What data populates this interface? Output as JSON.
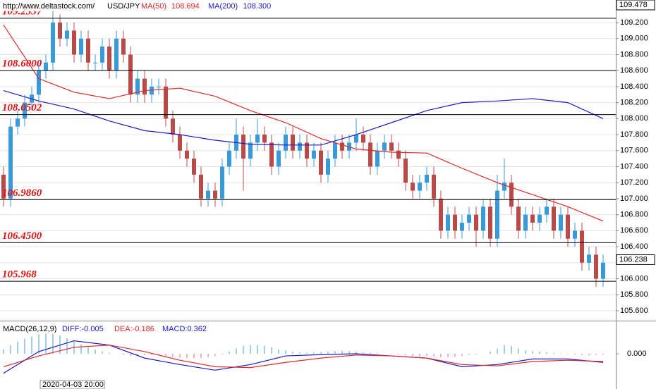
{
  "chart_data": [
    {
      "type": "candlestick",
      "site": "http://www.deltastock.com/",
      "symbol": "USD/JPY",
      "up_color": "#3a9ad9",
      "down_color": "#b84a4a",
      "ylim": [
        105.476,
        109.482
      ],
      "yticks": [
        {
          "value": 109.2,
          "label": "109.200"
        },
        {
          "value": 109.0,
          "label": "109.000"
        },
        {
          "value": 108.8,
          "label": "108.800"
        },
        {
          "value": 108.6,
          "label": "108.600"
        },
        {
          "value": 108.4,
          "label": "108.400"
        },
        {
          "value": 108.2,
          "label": "108.200"
        },
        {
          "value": 108.0,
          "label": "108.000"
        },
        {
          "value": 107.8,
          "label": "107.800"
        },
        {
          "value": 107.6,
          "label": "107.600"
        },
        {
          "value": 107.4,
          "label": "107.400"
        },
        {
          "value": 107.2,
          "label": "107.200"
        },
        {
          "value": 107.0,
          "label": "107.000"
        },
        {
          "value": 106.8,
          "label": "106.800"
        },
        {
          "value": 106.6,
          "label": "106.600"
        },
        {
          "value": 106.4,
          "label": "106.400"
        },
        {
          "value": 106.2,
          "label": "106.200"
        },
        {
          "value": 106.0,
          "label": "106.000"
        },
        {
          "value": 105.8,
          "label": "105.800"
        },
        {
          "value": 105.6,
          "label": "105.600"
        }
      ],
      "grid": true,
      "levels": [
        109.2537,
        {
          "value": 108.6,
          "label": "108.6000"
        },
        108.0502,
        {
          "value": 106.986,
          "label": "106.9860"
        },
        {
          "value": 106.45,
          "label": "106.4500"
        },
        105.968
      ],
      "price_labels": [
        109.478,
        106.238
      ],
      "date_label": "2020-04-03 20:00",
      "ohlc": [
        [
          107.3,
          107.4,
          106.9,
          107.0
        ],
        [
          107.0,
          108.0,
          106.9,
          107.9
        ],
        [
          107.9,
          108.1,
          107.8,
          108.0
        ],
        [
          108.0,
          108.3,
          107.9,
          108.2
        ],
        [
          108.2,
          108.4,
          108.1,
          108.3
        ],
        [
          108.3,
          108.7,
          108.2,
          108.6
        ],
        [
          108.6,
          108.8,
          108.5,
          108.7
        ],
        [
          108.7,
          109.4,
          108.6,
          109.2
        ],
        [
          109.2,
          109.3,
          108.9,
          109.0
        ],
        [
          109.0,
          109.2,
          108.9,
          109.1
        ],
        [
          109.1,
          109.2,
          108.7,
          108.8
        ],
        [
          108.8,
          109.1,
          108.7,
          109.0
        ],
        [
          109.0,
          109.1,
          108.6,
          108.7
        ],
        [
          108.7,
          108.8,
          108.6,
          108.7
        ],
        [
          108.7,
          109.0,
          108.6,
          108.9
        ],
        [
          108.9,
          109.0,
          108.5,
          108.6
        ],
        [
          108.6,
          109.1,
          108.5,
          109.0
        ],
        [
          109.0,
          109.1,
          108.7,
          108.8
        ],
        [
          108.8,
          108.9,
          108.2,
          108.3
        ],
        [
          108.3,
          108.6,
          108.2,
          108.5
        ],
        [
          108.5,
          108.6,
          108.2,
          108.3
        ],
        [
          108.3,
          108.5,
          108.2,
          108.4
        ],
        [
          108.4,
          108.5,
          108.3,
          108.4
        ],
        [
          108.4,
          108.5,
          107.9,
          108.0
        ],
        [
          108.0,
          108.1,
          107.7,
          107.8
        ],
        [
          107.8,
          107.9,
          107.5,
          107.6
        ],
        [
          107.6,
          107.7,
          107.4,
          107.5
        ],
        [
          107.5,
          107.6,
          107.2,
          107.3
        ],
        [
          107.3,
          107.4,
          106.9,
          107.0
        ],
        [
          107.0,
          107.2,
          106.9,
          107.1
        ],
        [
          107.1,
          107.2,
          106.9,
          107.0
        ],
        [
          107.0,
          107.5,
          106.9,
          107.4
        ],
        [
          107.4,
          107.7,
          107.3,
          107.6
        ],
        [
          107.6,
          108.0,
          107.5,
          107.8
        ],
        [
          107.8,
          107.9,
          107.1,
          107.5
        ],
        [
          107.5,
          107.8,
          107.4,
          107.7
        ],
        [
          107.7,
          108.0,
          107.6,
          107.8
        ],
        [
          107.8,
          107.9,
          107.6,
          107.7
        ],
        [
          107.7,
          107.8,
          107.3,
          107.4
        ],
        [
          107.4,
          107.7,
          107.3,
          107.6
        ],
        [
          107.6,
          107.9,
          107.5,
          107.8
        ],
        [
          107.8,
          107.9,
          107.5,
          107.6
        ],
        [
          107.6,
          107.8,
          107.5,
          107.7
        ],
        [
          107.7,
          107.8,
          107.4,
          107.5
        ],
        [
          107.5,
          107.7,
          107.4,
          107.6
        ],
        [
          107.6,
          107.7,
          107.2,
          107.3
        ],
        [
          107.3,
          107.6,
          107.2,
          107.5
        ],
        [
          107.5,
          107.8,
          107.4,
          107.7
        ],
        [
          107.7,
          107.8,
          107.5,
          107.6
        ],
        [
          107.6,
          107.8,
          107.5,
          107.7
        ],
        [
          107.7,
          108.0,
          107.6,
          107.8
        ],
        [
          107.8,
          107.9,
          107.6,
          107.7
        ],
        [
          107.7,
          107.8,
          107.3,
          107.4
        ],
        [
          107.4,
          107.7,
          107.3,
          107.6
        ],
        [
          107.6,
          107.8,
          107.5,
          107.7
        ],
        [
          107.7,
          107.8,
          107.5,
          107.6
        ],
        [
          107.6,
          107.7,
          107.4,
          107.5
        ],
        [
          107.5,
          107.6,
          107.1,
          107.2
        ],
        [
          107.2,
          107.3,
          107.0,
          107.1
        ],
        [
          107.1,
          107.3,
          107.0,
          107.2
        ],
        [
          107.2,
          107.4,
          107.1,
          107.3
        ],
        [
          107.3,
          107.4,
          106.9,
          107.0
        ],
        [
          107.0,
          107.1,
          106.5,
          106.6
        ],
        [
          106.6,
          106.9,
          106.5,
          106.8
        ],
        [
          106.8,
          106.9,
          106.5,
          106.6
        ],
        [
          106.6,
          106.8,
          106.5,
          106.7
        ],
        [
          106.7,
          106.9,
          106.6,
          106.8
        ],
        [
          106.8,
          106.9,
          106.4,
          106.6
        ],
        [
          106.6,
          107.0,
          106.5,
          106.9
        ],
        [
          106.9,
          107.0,
          106.4,
          106.5
        ],
        [
          106.5,
          107.3,
          106.4,
          107.1
        ],
        [
          107.1,
          107.5,
          107.0,
          107.2
        ],
        [
          107.2,
          107.3,
          106.8,
          106.9
        ],
        [
          106.9,
          107.0,
          106.5,
          106.6
        ],
        [
          106.6,
          106.9,
          106.5,
          106.8
        ],
        [
          106.8,
          106.9,
          106.6,
          106.7
        ],
        [
          106.7,
          106.9,
          106.6,
          106.8
        ],
        [
          106.8,
          107.0,
          106.7,
          106.9
        ],
        [
          106.9,
          107.0,
          106.5,
          106.6
        ],
        [
          106.6,
          106.9,
          106.5,
          106.8
        ],
        [
          106.8,
          106.9,
          106.4,
          106.5
        ],
        [
          106.5,
          106.7,
          106.4,
          106.6
        ],
        [
          106.6,
          106.7,
          106.1,
          106.2
        ],
        [
          106.2,
          106.4,
          106.1,
          106.3
        ],
        [
          106.3,
          106.4,
          105.9,
          106.0
        ],
        [
          106.0,
          106.3,
          105.9,
          106.2
        ]
      ],
      "series": [
        {
          "name": "MA(50)",
          "color": "#e02828",
          "current": 108.694,
          "x": [
            0,
            5,
            10,
            15,
            20,
            25,
            30,
            35,
            40,
            45,
            50,
            55,
            60,
            65,
            70,
            75,
            80,
            85
          ],
          "values": [
            109.17,
            108.5,
            108.33,
            108.25,
            108.35,
            108.38,
            108.28,
            108.1,
            107.95,
            107.75,
            107.62,
            107.58,
            107.57,
            107.38,
            107.2,
            107.05,
            106.9,
            106.72
          ]
        },
        {
          "name": "MA(200)",
          "color": "#1a1ac8",
          "current": 108.3,
          "current_label": "108.300",
          "x": [
            0,
            5,
            10,
            15,
            20,
            25,
            30,
            35,
            40,
            45,
            50,
            55,
            60,
            65,
            70,
            75,
            80,
            85
          ],
          "values": [
            108.35,
            108.22,
            108.12,
            107.97,
            107.85,
            107.8,
            107.73,
            107.68,
            107.67,
            107.67,
            107.8,
            107.95,
            108.1,
            108.2,
            108.22,
            108.25,
            108.2,
            108.0
          ]
        }
      ]
    },
    {
      "type": "macd",
      "title": "MACD(26,12,9)",
      "labels": [
        {
          "text": "DIFF:-0.005",
          "color": "#1a1ac8"
        },
        {
          "text": "DEA:-0.186",
          "color": "#e02828"
        },
        {
          "text": "MACD:0.362",
          "color": "#1a1ac8"
        }
      ],
      "ylim": [
        -0.75,
        0.717
      ],
      "yticks": [
        {
          "value": 0,
          "label": "0.000"
        }
      ],
      "histogram": {
        "pos_color": "#7fbfe6",
        "neg_color": "#e79a9a",
        "values": [
          0.1,
          0.2,
          0.28,
          0.35,
          0.4,
          0.45,
          0.47,
          0.46,
          0.42,
          0.36,
          0.3,
          0.22,
          0.15,
          0.1,
          0.06,
          0.02,
          0,
          -0.03,
          -0.05,
          -0.04,
          -0.03,
          -0.03,
          -0.04,
          -0.06,
          -0.08,
          -0.09,
          -0.1,
          -0.1,
          -0.1,
          -0.08,
          -0.06,
          -0.02,
          0.05,
          0.12,
          0.18,
          0.2,
          0.2,
          0.18,
          0.15,
          0.1,
          0.08,
          0.05,
          0.03,
          0.02,
          0.03,
          0.04,
          0.05,
          0.06,
          0.07,
          0.06,
          0.05,
          0.03,
          0.02,
          0.01,
          0,
          -0.01,
          -0.02,
          -0.03,
          -0.05,
          -0.06,
          -0.05,
          -0.06,
          -0.08,
          -0.08,
          -0.07,
          -0.05,
          -0.03,
          -0.02,
          0,
          0.05,
          0.12,
          0.2,
          0.18,
          0.12,
          0.08,
          0.06,
          0.05,
          0.04,
          0.02,
          0.01,
          -0.01,
          -0.02,
          -0.03,
          -0.04,
          -0.03,
          -0.02
        ]
      },
      "series": [
        {
          "name": "DIFF",
          "color": "#1a1ac8",
          "x": [
            0,
            5,
            10,
            15,
            20,
            25,
            30,
            35,
            40,
            45,
            50,
            55,
            60,
            65,
            70,
            75,
            80,
            85
          ],
          "values": [
            -0.45,
            0.05,
            0.3,
            0.2,
            -0.1,
            -0.25,
            -0.38,
            -0.25,
            -0.05,
            -0.02,
            0.0,
            -0.05,
            -0.1,
            -0.3,
            -0.25,
            -0.12,
            -0.12,
            -0.2
          ]
        },
        {
          "name": "DEA",
          "color": "#e02828",
          "x": [
            0,
            5,
            10,
            15,
            20,
            25,
            30,
            35,
            40,
            45,
            50,
            55,
            60,
            65,
            70,
            75,
            80,
            85
          ],
          "values": [
            -0.3,
            -0.05,
            0.15,
            0.2,
            0.05,
            -0.15,
            -0.3,
            -0.32,
            -0.2,
            -0.1,
            -0.03,
            -0.05,
            -0.1,
            -0.25,
            -0.28,
            -0.18,
            -0.15,
            -0.18
          ]
        }
      ]
    }
  ]
}
